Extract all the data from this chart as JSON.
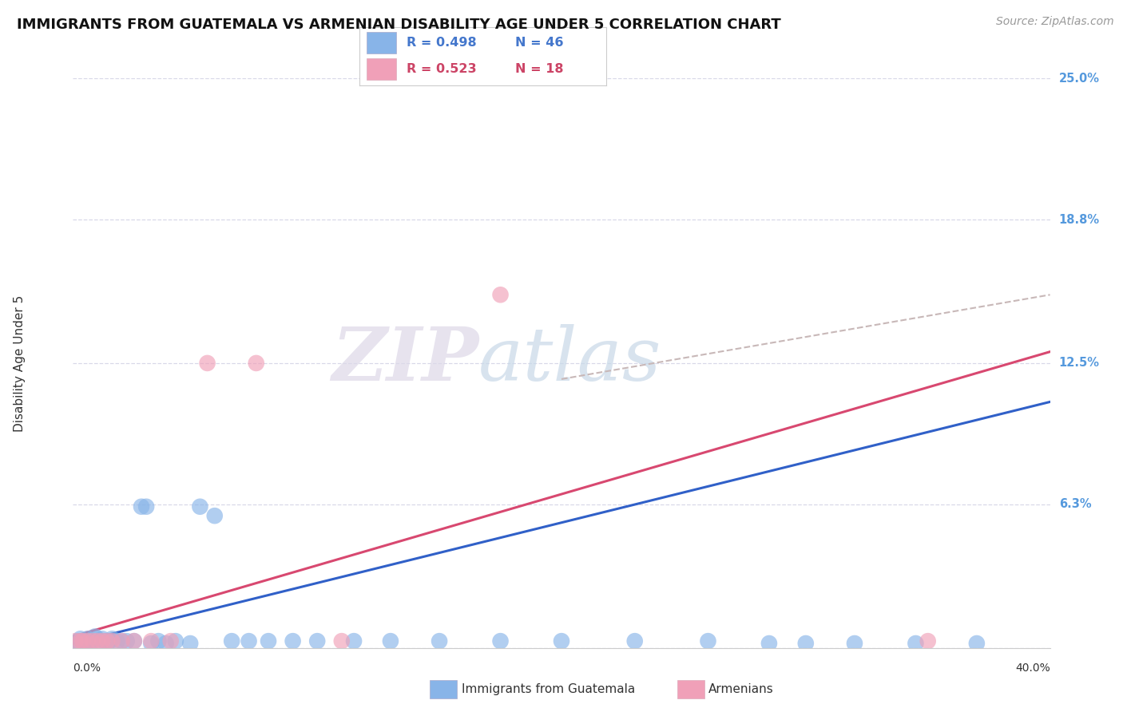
{
  "title": "IMMIGRANTS FROM GUATEMALA VS ARMENIAN DISABILITY AGE UNDER 5 CORRELATION CHART",
  "source": "Source: ZipAtlas.com",
  "xlabel_label": "Immigrants from Guatemala",
  "ylabel_label": "Disability Age Under 5",
  "xlim": [
    0.0,
    0.4
  ],
  "ylim": [
    0.0,
    0.25
  ],
  "ytick_positions_right": [
    0.25,
    0.188,
    0.125,
    0.063,
    0.0
  ],
  "ytick_labels_right": [
    "25.0%",
    "18.8%",
    "12.5%",
    "6.3%",
    ""
  ],
  "grid_color": "#d8d8e8",
  "background_color": "#ffffff",
  "watermark_zip": "ZIP",
  "watermark_atlas": "atlas",
  "legend_R1": "R = 0.498",
  "legend_N1": "N = 46",
  "legend_R2": "R = 0.523",
  "legend_N2": "N = 18",
  "series1_color": "#88b4e8",
  "series2_color": "#f0a0b8",
  "trendline1_color": "#3060c8",
  "trendline2_color": "#d84870",
  "trendline_dashed_color": "#c8b8b8",
  "series1_name": "Immigrants from Guatemala",
  "series2_name": "Armenians",
  "guatemala_x": [
    0.001,
    0.002,
    0.003,
    0.004,
    0.005,
    0.006,
    0.007,
    0.008,
    0.009,
    0.01,
    0.011,
    0.012,
    0.013,
    0.014,
    0.015,
    0.016,
    0.018,
    0.02,
    0.022,
    0.025,
    0.028,
    0.03,
    0.032,
    0.035,
    0.038,
    0.042,
    0.048,
    0.052,
    0.058,
    0.065,
    0.072,
    0.08,
    0.09,
    0.1,
    0.115,
    0.13,
    0.15,
    0.175,
    0.2,
    0.23,
    0.26,
    0.285,
    0.3,
    0.32,
    0.345,
    0.37
  ],
  "guatemala_y": [
    0.002,
    0.003,
    0.004,
    0.003,
    0.002,
    0.004,
    0.003,
    0.003,
    0.005,
    0.004,
    0.003,
    0.004,
    0.003,
    0.003,
    0.003,
    0.004,
    0.003,
    0.003,
    0.003,
    0.003,
    0.062,
    0.062,
    0.002,
    0.003,
    0.002,
    0.003,
    0.002,
    0.062,
    0.058,
    0.003,
    0.003,
    0.003,
    0.003,
    0.003,
    0.003,
    0.003,
    0.003,
    0.003,
    0.003,
    0.003,
    0.003,
    0.002,
    0.002,
    0.002,
    0.002,
    0.002
  ],
  "armenian_x": [
    0.001,
    0.003,
    0.004,
    0.006,
    0.008,
    0.01,
    0.012,
    0.014,
    0.016,
    0.02,
    0.025,
    0.032,
    0.04,
    0.055,
    0.075,
    0.11,
    0.175,
    0.35
  ],
  "armenian_y": [
    0.003,
    0.003,
    0.003,
    0.003,
    0.003,
    0.003,
    0.003,
    0.003,
    0.003,
    0.003,
    0.003,
    0.003,
    0.003,
    0.125,
    0.125,
    0.003,
    0.155,
    0.003
  ],
  "trendline1_x0": 0.0,
  "trendline1_x1": 0.4,
  "trendline1_y0": 0.002,
  "trendline1_y1": 0.108,
  "trendline2_x0": 0.0,
  "trendline2_x1": 0.4,
  "trendline2_y0": 0.005,
  "trendline2_y1": 0.13,
  "trendline_dash_x0": 0.2,
  "trendline_dash_x1": 0.4,
  "trendline_dash_y0": 0.118,
  "trendline_dash_y1": 0.155
}
